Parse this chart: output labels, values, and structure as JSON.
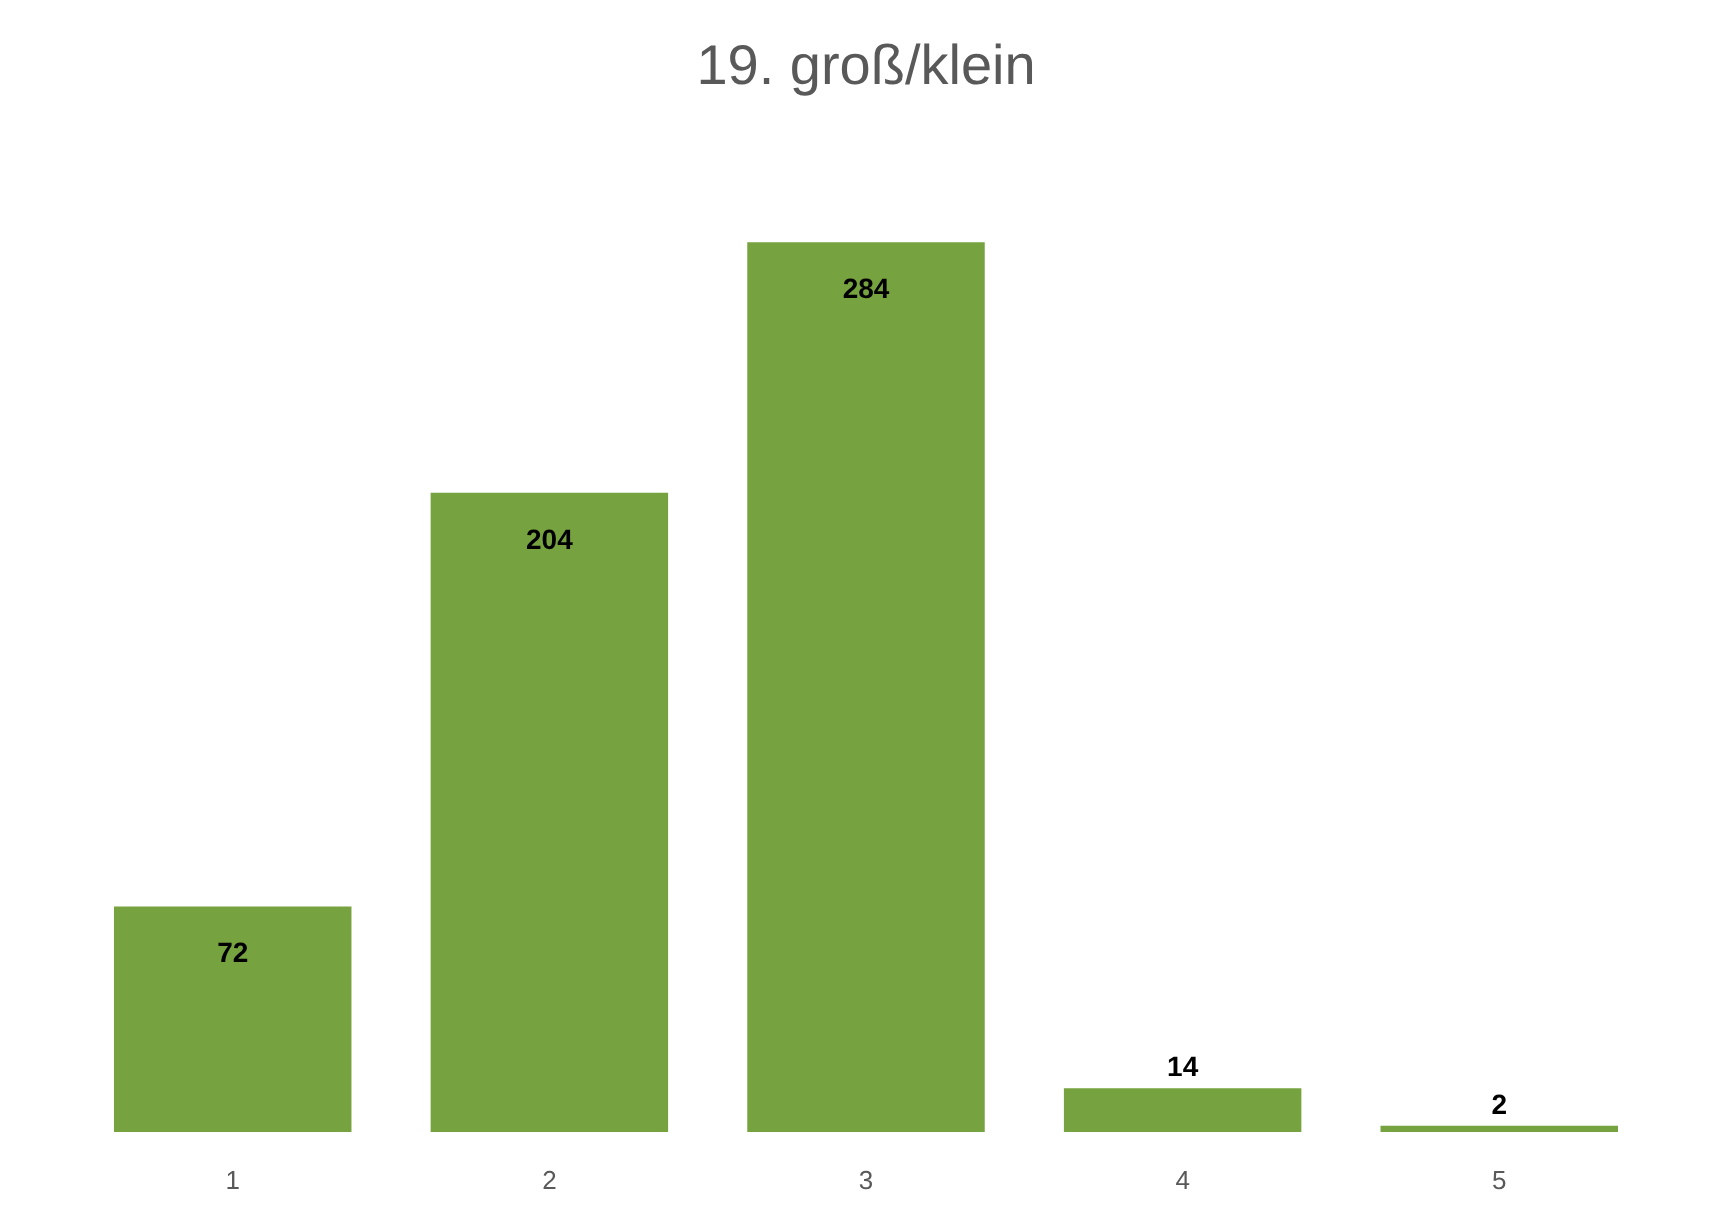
{
  "chart_data": {
    "type": "bar",
    "title": "19. groß/klein",
    "categories": [
      "1",
      "2",
      "3",
      "4",
      "5"
    ],
    "values": [
      72,
      204,
      284,
      14,
      2
    ],
    "color": "#76a33f",
    "data_labels": true,
    "grid": false
  }
}
